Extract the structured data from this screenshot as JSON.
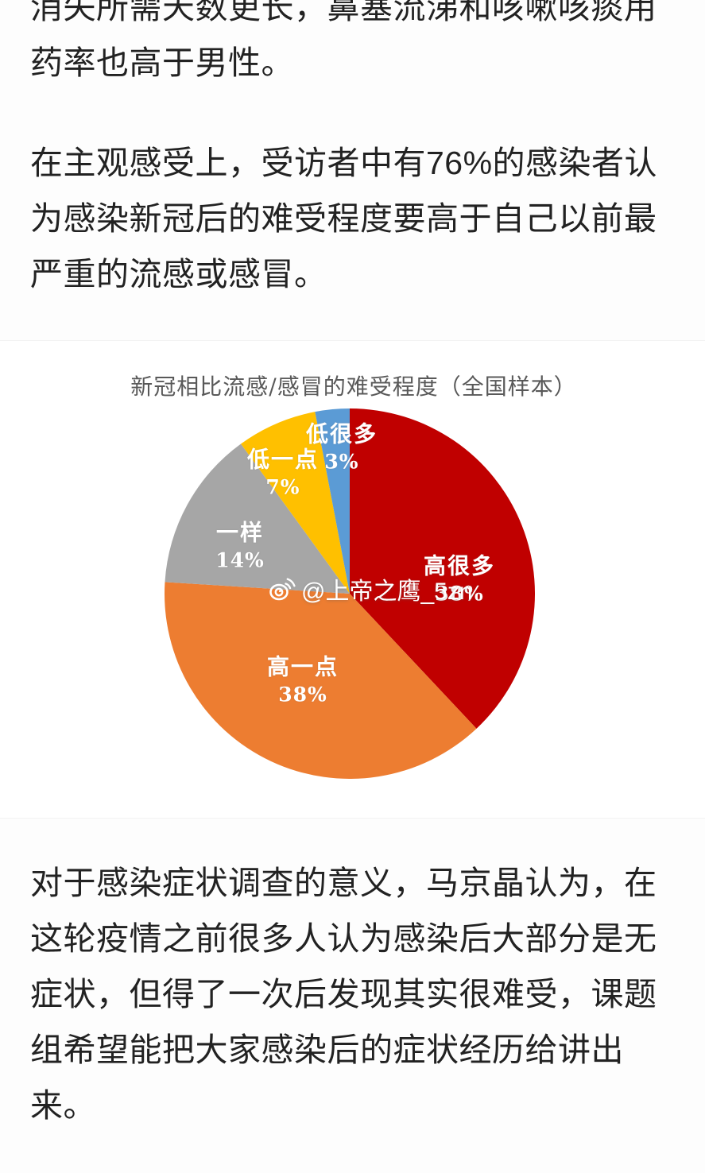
{
  "article": {
    "paragraphs": [
      {
        "lines": [
          "消失所需天数更长，鼻塞流涕和咳嗽咳痰用",
          "药率也高于男性。"
        ]
      },
      {
        "lines": [
          "在主观感受上，受访者中有76%的感染者认",
          "为感染新冠后的难受程度要高于自己以前最",
          "严重的流感或感冒。"
        ]
      },
      {
        "lines": [
          "对于感染症状调查的意义，马京晶认为，在",
          "这轮疫情之前很多人认为感染后大部分是无",
          "症状，但得了一次后发现其实很难受，课题",
          "组希望能把大家感染后的症状经历给讲出",
          "来。"
        ]
      }
    ],
    "text_color": "#222222"
  },
  "chart_data": {
    "type": "pie",
    "title": "新冠相比流感/感冒的难受程度（全国样本）",
    "title_color": "#595959",
    "start_angle_deg": 0,
    "direction": "clockwise",
    "label_color": "#ffffff",
    "slices": [
      {
        "label": "高很多",
        "value": 38,
        "pct_text": "38%",
        "color": "#c00000"
      },
      {
        "label": "高一点",
        "value": 38,
        "pct_text": "38%",
        "color": "#ed7d31"
      },
      {
        "label": "一样",
        "value": 14,
        "pct_text": "14%",
        "color": "#a6a6a6"
      },
      {
        "label": "低一点",
        "value": 7,
        "pct_text": "7%",
        "color": "#ffc000"
      },
      {
        "label": "低很多",
        "value": 3,
        "pct_text": "3%",
        "color": "#5b9bd5"
      }
    ]
  },
  "watermark": {
    "text": "@上帝之鹰_5zn",
    "icon": "weibo-icon",
    "color": "#ffffff"
  }
}
